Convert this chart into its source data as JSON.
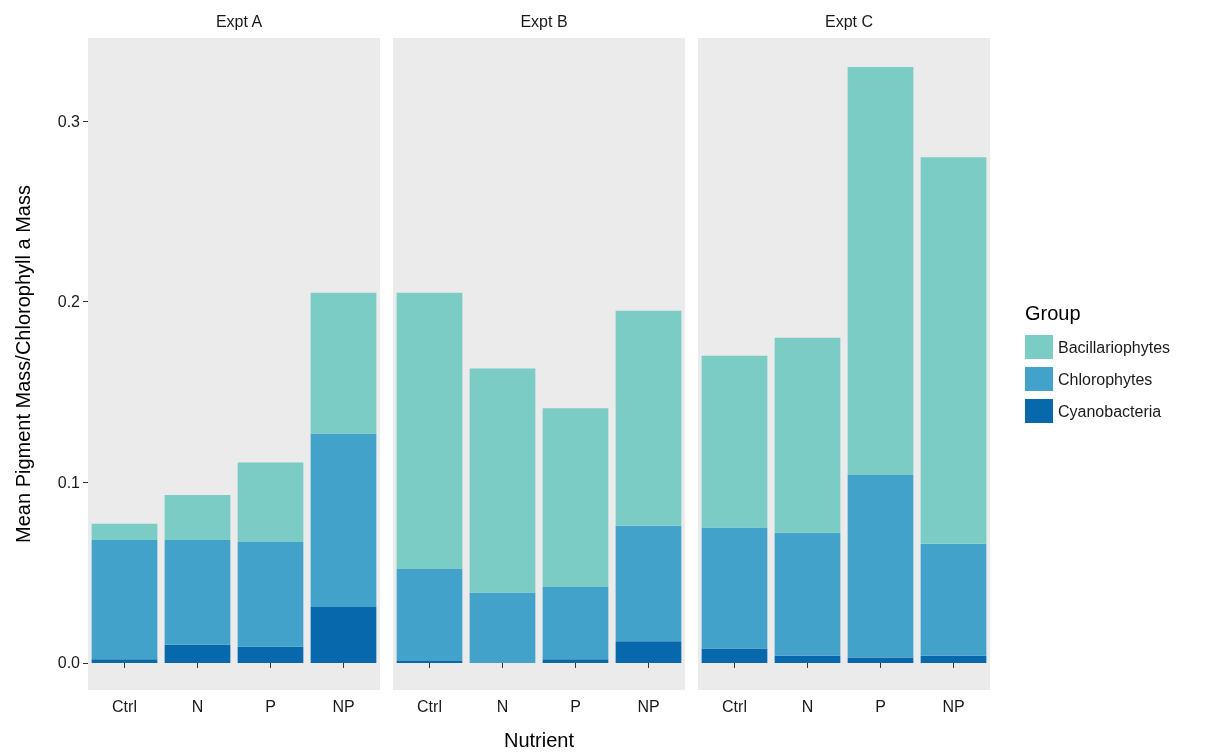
{
  "chart_data": [
    {
      "type": "bar",
      "title": "Expt A",
      "ylabel": "Mean Pigment Mass/Chlorophyll a Mass",
      "stacked": true,
      "grid": false,
      "categories": [
        "Ctrl",
        "N",
        "P",
        "NP"
      ],
      "ylim": [
        -0.015,
        0.346
      ],
      "yticks": [
        {
          "value": 0,
          "label": "0.0"
        },
        {
          "value": 0.1,
          "label": "0.1"
        },
        {
          "value": 0.2,
          "label": "0.2"
        },
        {
          "value": 0.3,
          "label": "0.3"
        }
      ],
      "series": [
        {
          "color": "#0868ac",
          "values": [
            0.002,
            0.01,
            0.009,
            0.031
          ]
        },
        {
          "color": "#43a2ca",
          "values": [
            0.066,
            0.058,
            0.058,
            0.096
          ]
        },
        {
          "color": "#7bccc4",
          "values": [
            0.009,
            0.025,
            0.044,
            0.078
          ]
        }
      ]
    },
    {
      "type": "bar",
      "title": "Expt B",
      "xlabel": "Nutrient",
      "stacked": true,
      "grid": false,
      "tick_labels": "x",
      "categories": [
        "Ctrl",
        "N",
        "P",
        "NP"
      ],
      "ylim": [
        -0.015,
        0.346
      ],
      "series": [
        {
          "color": "#0868ac",
          "values": [
            0.001,
            0,
            0.002,
            0.012
          ]
        },
        {
          "color": "#43a2ca",
          "values": [
            0.051,
            0.039,
            0.04,
            0.064
          ]
        },
        {
          "color": "#7bccc4",
          "values": [
            0.153,
            0.124,
            0.099,
            0.119
          ]
        }
      ]
    },
    {
      "type": "bar",
      "title": "Expt C",
      "legend_title": "Group",
      "legend": "right",
      "stacked": true,
      "grid": false,
      "tick_labels": "x",
      "categories": [
        "Ctrl",
        "N",
        "P",
        "NP"
      ],
      "ylim": [
        -0.015,
        0.346
      ],
      "series": [
        {
          "name": "Cyanobacteria",
          "color": "#0868ac",
          "values": [
            0.008,
            0.004,
            0.003,
            0.004
          ]
        },
        {
          "name": "Chlorophytes",
          "color": "#43a2ca",
          "values": [
            0.067,
            0.068,
            0.101,
            0.062
          ]
        },
        {
          "name": "Bacillariophytes",
          "color": "#7bccc4",
          "values": [
            0.095,
            0.108,
            0.226,
            0.214
          ]
        }
      ]
    }
  ]
}
